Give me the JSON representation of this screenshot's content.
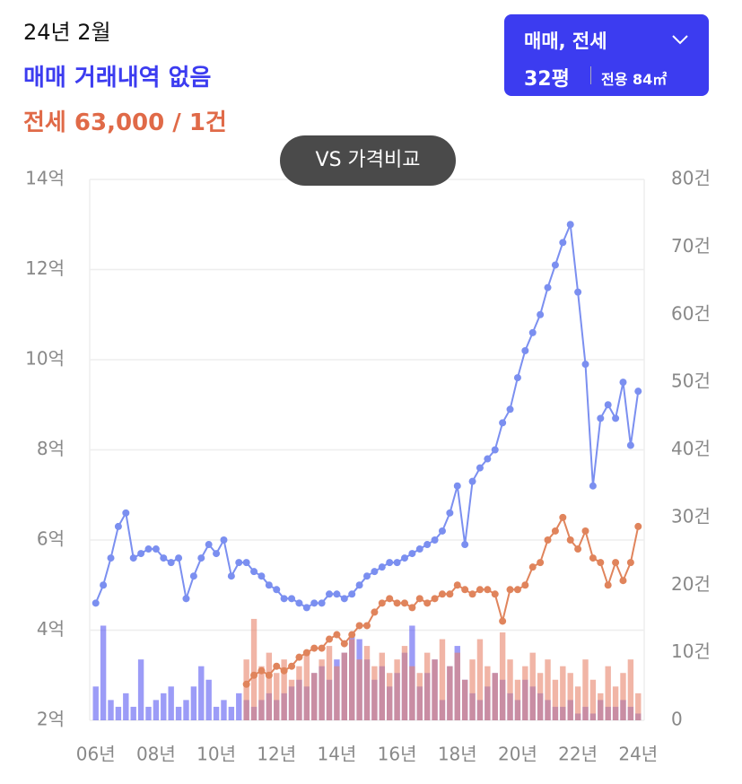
{
  "header": {
    "date": "24년 2월",
    "sale_info": "매매 거래내역 없음",
    "jeonse_info": "전세 63,000 / 1건"
  },
  "selector": {
    "type": "매매, 전세",
    "size": "32평",
    "area": "전용 84㎡"
  },
  "compare_button": "VS 가격비교",
  "chart_data": {
    "type": "combo",
    "xlim": [
      2005.8,
      2024.2
    ],
    "xticks": [
      {
        "value": 2006,
        "label": "06년"
      },
      {
        "value": 2008,
        "label": "08년"
      },
      {
        "value": 2010,
        "label": "10년"
      },
      {
        "value": 2012,
        "label": "12년"
      },
      {
        "value": 2014,
        "label": "14년"
      },
      {
        "value": 2016,
        "label": "16년"
      },
      {
        "value": 2018,
        "label": "18년"
      },
      {
        "value": 2020,
        "label": "20년"
      },
      {
        "value": 2022,
        "label": "22년"
      },
      {
        "value": 2024,
        "label": "24년"
      }
    ],
    "ylim": [
      2,
      14
    ],
    "yticks": [
      {
        "value": 2,
        "label": "2억"
      },
      {
        "value": 4,
        "label": "4억"
      },
      {
        "value": 6,
        "label": "6억"
      },
      {
        "value": 8,
        "label": "8억"
      },
      {
        "value": 10,
        "label": "10억"
      },
      {
        "value": 12,
        "label": "12억"
      },
      {
        "value": 14,
        "label": "14억"
      }
    ],
    "y2lim": [
      0,
      80
    ],
    "y2ticks": [
      0,
      {
        "value": 10,
        "label": "10건"
      },
      {
        "value": 20,
        "label": "20건"
      },
      {
        "value": 30,
        "label": "30건"
      },
      {
        "value": 40,
        "label": "40건"
      },
      {
        "value": 50,
        "label": "50건"
      },
      {
        "value": 60,
        "label": "60건"
      },
      {
        "value": 70,
        "label": "70건"
      },
      {
        "value": 80,
        "label": "80건"
      }
    ],
    "grid": true,
    "series": [
      {
        "type": "bar",
        "axis": "y2",
        "color": "#5a5af2",
        "x_start": 2006,
        "x_step": 0.25,
        "values": [
          5,
          14,
          3,
          2,
          4,
          2,
          9,
          2,
          3,
          4,
          5,
          2,
          3,
          5,
          8,
          6,
          2,
          3,
          2,
          4,
          3,
          2,
          3,
          4,
          3,
          4,
          5,
          6,
          5,
          7,
          8,
          6,
          9,
          10,
          13,
          12,
          9,
          6,
          8,
          5,
          7,
          10,
          14,
          5,
          7,
          9,
          3,
          8,
          11,
          6,
          4,
          3,
          5,
          7,
          6,
          4,
          3,
          6,
          5,
          4,
          3,
          2,
          2,
          3,
          1,
          2,
          1,
          3,
          2,
          2,
          3,
          2,
          1
        ]
      },
      {
        "type": "bar",
        "axis": "y2",
        "color": "#e8836a",
        "x_start": 2011,
        "x_step": 0.25,
        "values": [
          9,
          15,
          8,
          10,
          7,
          9,
          6,
          8,
          10,
          7,
          9,
          11,
          8,
          10,
          12,
          9,
          11,
          8,
          10,
          7,
          9,
          11,
          8,
          7,
          10,
          9,
          12,
          8,
          10,
          6,
          9,
          12,
          8,
          7,
          13,
          9,
          6,
          8,
          10,
          7,
          9,
          6,
          8,
          7,
          5,
          9,
          6,
          4,
          8,
          5,
          7,
          9,
          4
        ]
      },
      {
        "type": "line",
        "axis": "y",
        "color": "#7b8ff0",
        "x_start": 2006,
        "x_step": 0.25,
        "values": [
          4.6,
          5.0,
          5.6,
          6.3,
          6.6,
          5.6,
          5.7,
          5.8,
          5.8,
          5.6,
          5.5,
          5.6,
          4.7,
          5.2,
          5.6,
          5.9,
          5.7,
          6.0,
          5.2,
          5.5,
          5.5,
          5.3,
          5.2,
          5.0,
          4.9,
          4.7,
          4.7,
          4.6,
          4.5,
          4.6,
          4.6,
          4.8,
          4.8,
          4.7,
          4.8,
          5.0,
          5.2,
          5.3,
          5.4,
          5.5,
          5.5,
          5.6,
          5.7,
          5.8,
          5.9,
          6.0,
          6.2,
          6.6,
          7.2,
          5.9,
          7.3,
          7.6,
          7.8,
          8.0,
          8.6,
          8.9,
          9.6,
          10.2,
          10.6,
          11.0,
          11.6,
          12.1,
          12.6,
          13.0,
          11.5,
          9.9,
          7.2,
          8.7,
          9.0,
          8.7,
          9.5,
          8.1,
          9.3
        ]
      },
      {
        "type": "line",
        "axis": "y",
        "color": "#e0845c",
        "x_start": 2011,
        "x_step": 0.25,
        "values": [
          2.8,
          3.0,
          3.1,
          3.0,
          3.2,
          3.1,
          3.2,
          3.4,
          3.5,
          3.6,
          3.6,
          3.8,
          3.9,
          3.7,
          3.9,
          4.1,
          4.1,
          4.4,
          4.6,
          4.7,
          4.6,
          4.6,
          4.5,
          4.7,
          4.6,
          4.7,
          4.8,
          4.8,
          5.0,
          4.9,
          4.8,
          4.9,
          4.9,
          4.8,
          4.2,
          4.9,
          4.9,
          5.0,
          5.4,
          5.5,
          6.0,
          6.2,
          6.5,
          6.0,
          5.8,
          6.2,
          5.6,
          5.5,
          5.0,
          5.5,
          5.1,
          5.5,
          6.3
        ]
      }
    ]
  }
}
